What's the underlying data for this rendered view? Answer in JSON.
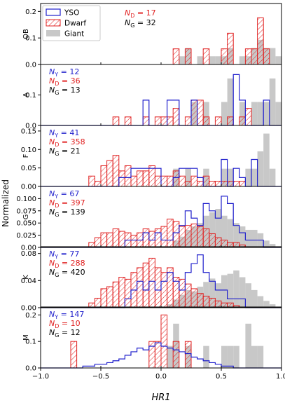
{
  "figure": {
    "ylabel": "Normalized",
    "xlabel": "HR1",
    "xtick_labels": [
      "−1.0",
      "−0.5",
      "0.0",
      "0.5",
      "1.0"
    ]
  },
  "legend": {
    "entries": [
      {
        "label": "YSO",
        "style": "step",
        "color": "#1f1fcc"
      },
      {
        "label": "Dwarf",
        "style": "hatch",
        "color": "#e02020"
      },
      {
        "label": "Giant",
        "style": "fill",
        "color": "#c8c8c8"
      }
    ]
  },
  "colors": {
    "yso": "#1f1fcc",
    "dwarf": "#e02020",
    "giant": "#c8c8c8"
  },
  "chart_data": {
    "type": "histogram",
    "x_axis": {
      "label": "HR1",
      "range": [
        -1.0,
        1.0
      ],
      "ticks": [
        -1.0,
        -0.5,
        0.0,
        0.5,
        1.0
      ]
    },
    "bin_width": 0.05,
    "bin_start": -1.0,
    "panels": [
      {
        "name": "OB",
        "ylim": [
          0,
          0.23
        ],
        "yticks": [
          {
            "value": 0,
            "label": "0.0"
          },
          {
            "value": 0.1,
            "label": "0.1"
          },
          {
            "value": 0.2,
            "label": "0.2"
          }
        ],
        "annot": [
          {
            "main": "N",
            "sub": "D",
            "value": "17",
            "color": "#e02020"
          },
          {
            "main": "N",
            "sub": "G",
            "value": "32",
            "color": "#000000"
          }
        ],
        "giant": [
          0,
          0,
          0,
          0,
          0,
          0,
          0,
          0,
          0,
          0,
          0,
          0,
          0,
          0,
          0,
          0,
          0,
          0,
          0,
          0,
          0,
          0,
          0,
          0.031,
          0.062,
          0,
          0.031,
          0,
          0.031,
          0.031,
          0.031,
          0.062,
          0,
          0.031,
          0.031,
          0.062,
          0.093,
          0.062,
          0.062,
          0.031
        ],
        "dwarf": [
          0,
          0,
          0,
          0,
          0,
          0,
          0,
          0,
          0,
          0,
          0,
          0,
          0,
          0,
          0,
          0,
          0,
          0,
          0,
          0,
          0,
          0,
          0.059,
          0,
          0.059,
          0,
          0,
          0.059,
          0,
          0,
          0.059,
          0.118,
          0,
          0,
          0.059,
          0.059,
          0.176,
          0.059,
          0,
          0
        ],
        "yso": []
      },
      {
        "name": "A",
        "ylim": [
          0,
          0.2
        ],
        "yticks": [
          {
            "value": 0,
            "label": "0.0"
          },
          {
            "value": 0.1,
            "label": "0.1"
          }
        ],
        "annot": [
          {
            "main": "N",
            "sub": "Y",
            "value": "12",
            "color": "#1f1fcc"
          },
          {
            "main": "N",
            "sub": "D",
            "value": "36",
            "color": "#e02020"
          },
          {
            "main": "N",
            "sub": "G",
            "value": "13",
            "color": "#000000"
          }
        ],
        "giant": [
          0,
          0,
          0,
          0,
          0,
          0,
          0,
          0,
          0,
          0,
          0,
          0,
          0,
          0,
          0,
          0,
          0,
          0,
          0,
          0,
          0,
          0,
          0,
          0,
          0,
          0.077,
          0,
          0.077,
          0,
          0,
          0.077,
          0.154,
          0,
          0.077,
          0,
          0.077,
          0.077,
          0.077,
          0.154,
          0.077
        ],
        "dwarf": [
          0,
          0,
          0,
          0,
          0,
          0,
          0,
          0,
          0,
          0,
          0,
          0,
          0.028,
          0,
          0.028,
          0,
          0,
          0.028,
          0,
          0.028,
          0.028,
          0.028,
          0.056,
          0,
          0.028,
          0.083,
          0.083,
          0.028,
          0,
          0.028,
          0,
          0.028,
          0,
          0.028,
          0.056,
          0,
          0,
          0,
          0,
          0
        ],
        "yso": [
          0,
          0,
          0,
          0,
          0,
          0,
          0,
          0,
          0,
          0,
          0,
          0,
          0,
          0,
          0,
          0,
          0,
          0.083,
          0,
          0,
          0,
          0.083,
          0.083,
          0,
          0,
          0.083,
          0,
          0,
          0,
          0,
          0,
          0,
          0.167,
          0.083,
          0,
          0,
          0,
          0.083,
          0,
          0
        ]
      },
      {
        "name": "F",
        "ylim": [
          0,
          0.165
        ],
        "yticks": [
          {
            "value": 0,
            "label": "0.00"
          },
          {
            "value": 0.05,
            "label": "0.05"
          },
          {
            "value": 0.1,
            "label": "0.10"
          },
          {
            "value": 0.15,
            "label": "0.15"
          }
        ],
        "annot": [
          {
            "main": "N",
            "sub": "Y",
            "value": "41",
            "color": "#1f1fcc"
          },
          {
            "main": "N",
            "sub": "D",
            "value": "358",
            "color": "#e02020"
          },
          {
            "main": "N",
            "sub": "G",
            "value": "21",
            "color": "#000000"
          }
        ],
        "giant": [
          0,
          0,
          0,
          0,
          0,
          0,
          0,
          0,
          0,
          0,
          0,
          0,
          0,
          0,
          0,
          0,
          0,
          0,
          0,
          0,
          0,
          0,
          0.048,
          0,
          0.048,
          0,
          0,
          0.048,
          0,
          0,
          0.048,
          0.048,
          0,
          0,
          0.048,
          0.048,
          0.095,
          0.143,
          0.048,
          0
        ],
        "dwarf": [
          0,
          0,
          0,
          0,
          0,
          0,
          0,
          0,
          0.028,
          0.014,
          0.056,
          0.07,
          0.084,
          0.042,
          0.056,
          0.028,
          0.042,
          0.042,
          0.056,
          0.028,
          0.028,
          0.028,
          0.042,
          0.028,
          0.014,
          0.028,
          0.014,
          0.028,
          0.014,
          0.014,
          0.014,
          0.014,
          0.014,
          0.014,
          0,
          0,
          0,
          0,
          0,
          0
        ],
        "yso": [
          0,
          0,
          0,
          0,
          0,
          0,
          0,
          0,
          0,
          0,
          0,
          0,
          0,
          0.024,
          0.024,
          0.049,
          0.049,
          0.049,
          0.049,
          0.049,
          0,
          0,
          0.024,
          0.049,
          0.049,
          0.049,
          0.024,
          0,
          0,
          0,
          0.073,
          0,
          0.049,
          0.024,
          0,
          0.073,
          0,
          0,
          0,
          0
        ]
      },
      {
        "name": "G",
        "ylim": [
          0,
          0.125
        ],
        "yticks": [
          {
            "value": 0,
            "label": "0.00"
          },
          {
            "value": 0.025,
            "label": "0.025"
          },
          {
            "value": 0.05,
            "label": "0.050"
          },
          {
            "value": 0.075,
            "label": "0.075"
          },
          {
            "value": 0.1,
            "label": "0.100"
          }
        ],
        "annot": [
          {
            "main": "N",
            "sub": "Y",
            "value": "67",
            "color": "#1f1fcc"
          },
          {
            "main": "N",
            "sub": "D",
            "value": "397",
            "color": "#e02020"
          },
          {
            "main": "N",
            "sub": "G",
            "value": "139",
            "color": "#000000"
          }
        ],
        "giant": [
          0,
          0,
          0,
          0,
          0,
          0,
          0,
          0,
          0,
          0,
          0,
          0,
          0,
          0,
          0,
          0,
          0,
          0,
          0,
          0,
          0,
          0,
          0.014,
          0.022,
          0.036,
          0.043,
          0.05,
          0.065,
          0.072,
          0.079,
          0.065,
          0.058,
          0.05,
          0.043,
          0.036,
          0.036,
          0.029,
          0.014,
          0.007,
          0
        ],
        "dwarf": [
          0,
          0,
          0,
          0,
          0,
          0,
          0,
          0,
          0.01,
          0.02,
          0.03,
          0.03,
          0.038,
          0.033,
          0.03,
          0.025,
          0.03,
          0.038,
          0.033,
          0.038,
          0.043,
          0.058,
          0.053,
          0.043,
          0.045,
          0.048,
          0.043,
          0.038,
          0.028,
          0.02,
          0.015,
          0.01,
          0.01,
          0.005,
          0,
          0,
          0,
          0,
          0,
          0
        ],
        "yso": [
          0,
          0,
          0,
          0,
          0,
          0,
          0,
          0,
          0,
          0,
          0,
          0,
          0,
          0,
          0.015,
          0.015,
          0.015,
          0.03,
          0.015,
          0.03,
          0.015,
          0.015,
          0.03,
          0.045,
          0.075,
          0.06,
          0.045,
          0.09,
          0.075,
          0.06,
          0.105,
          0.09,
          0.045,
          0.03,
          0.015,
          0.015,
          0.015,
          0,
          0,
          0
        ]
      },
      {
        "name": "K",
        "ylim": [
          0,
          0.09
        ],
        "yticks": [
          {
            "value": 0,
            "label": "0.00"
          },
          {
            "value": 0.04,
            "label": "0.04"
          },
          {
            "value": 0.08,
            "label": "0.08"
          }
        ],
        "annot": [
          {
            "main": "N",
            "sub": "Y",
            "value": "77",
            "color": "#1f1fcc"
          },
          {
            "main": "N",
            "sub": "D",
            "value": "288",
            "color": "#e02020"
          },
          {
            "main": "N",
            "sub": "G",
            "value": "420",
            "color": "#000000"
          }
        ],
        "giant": [
          0,
          0,
          0,
          0,
          0,
          0,
          0,
          0,
          0,
          0,
          0,
          0,
          0,
          0,
          0,
          0,
          0,
          0,
          0,
          0,
          0,
          0.005,
          0.012,
          0.019,
          0.026,
          0.024,
          0.031,
          0.038,
          0.043,
          0.036,
          0.048,
          0.05,
          0.055,
          0.045,
          0.036,
          0.026,
          0.017,
          0.01,
          0.005,
          0
        ],
        "dwarf": [
          0,
          0,
          0,
          0,
          0,
          0,
          0,
          0,
          0.007,
          0.014,
          0.028,
          0.031,
          0.038,
          0.045,
          0.042,
          0.052,
          0.059,
          0.066,
          0.073,
          0.059,
          0.052,
          0.059,
          0.045,
          0.042,
          0.035,
          0.028,
          0.021,
          0.017,
          0.014,
          0.01,
          0.007,
          0.007,
          0.003,
          0,
          0,
          0,
          0,
          0,
          0,
          0
        ],
        "yso": [
          0,
          0,
          0,
          0,
          0,
          0,
          0,
          0,
          0,
          0,
          0,
          0,
          0,
          0,
          0.013,
          0.026,
          0.039,
          0.026,
          0.039,
          0.026,
          0.039,
          0.052,
          0.039,
          0.026,
          0.052,
          0.065,
          0.078,
          0.052,
          0.039,
          0.026,
          0.026,
          0.013,
          0.013,
          0.013,
          0,
          0,
          0,
          0,
          0,
          0
        ]
      },
      {
        "name": "M",
        "ylim": [
          0,
          0.23
        ],
        "yticks": [
          {
            "value": 0,
            "label": "0.0"
          },
          {
            "value": 0.1,
            "label": "0.1"
          },
          {
            "value": 0.2,
            "label": "0.2"
          }
        ],
        "annot": [
          {
            "main": "N",
            "sub": "Y",
            "value": "147",
            "color": "#1f1fcc"
          },
          {
            "main": "N",
            "sub": "D",
            "value": "10",
            "color": "#e02020"
          },
          {
            "main": "N",
            "sub": "G",
            "value": "12",
            "color": "#000000"
          }
        ],
        "giant": [
          0,
          0,
          0,
          0,
          0,
          0,
          0,
          0,
          0,
          0,
          0,
          0,
          0,
          0,
          0,
          0,
          0,
          0,
          0,
          0,
          0,
          0.083,
          0.167,
          0,
          0.083,
          0,
          0,
          0.083,
          0,
          0,
          0.083,
          0.083,
          0.083,
          0,
          0.167,
          0.083,
          0.083,
          0,
          0,
          0
        ],
        "dwarf": [
          0,
          0,
          0,
          0,
          0,
          0.1,
          0,
          0,
          0,
          0,
          0,
          0,
          0,
          0,
          0,
          0,
          0,
          0,
          0.1,
          0.1,
          0.2,
          0,
          0.1,
          0,
          0.1,
          0,
          0,
          0,
          0,
          0,
          0,
          0,
          0,
          0,
          0,
          0,
          0,
          0,
          0,
          0
        ],
        "yso": [
          0,
          0,
          0,
          0,
          0,
          0,
          0,
          0.007,
          0.007,
          0.014,
          0.014,
          0.02,
          0.027,
          0.034,
          0.048,
          0.061,
          0.075,
          0.068,
          0.082,
          0.095,
          0.082,
          0.075,
          0.068,
          0.061,
          0.054,
          0.041,
          0.034,
          0.027,
          0.02,
          0.014,
          0.007,
          0.007,
          0,
          0,
          0,
          0,
          0,
          0,
          0,
          0
        ]
      }
    ]
  }
}
